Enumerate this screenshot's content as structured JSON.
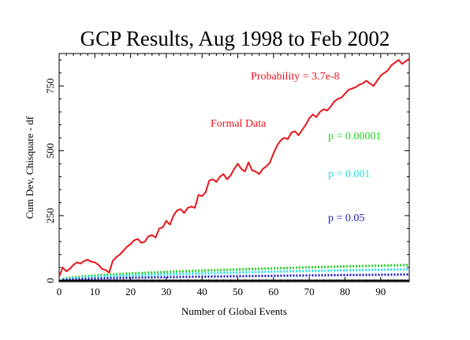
{
  "chart_data": {
    "type": "line",
    "title": "GCP Results, Aug 1998 to Feb 2002",
    "xlabel": "Number of Global Events",
    "ylabel": "Cum Dev, Chisquare - df",
    "xlim": [
      0,
      98
    ],
    "ylim": [
      -5,
      875
    ],
    "x_ticks": [
      0,
      10,
      20,
      30,
      40,
      50,
      60,
      70,
      80,
      90
    ],
    "y_ticks": [
      0,
      250,
      500,
      750
    ],
    "grid": false,
    "frame_color": "#000000",
    "series": [
      {
        "name": "Formal Data",
        "style": "solid",
        "color": "#e8141b",
        "x": [
          0,
          1,
          2,
          3,
          4,
          5,
          6,
          7,
          8,
          9,
          10,
          11,
          12,
          13,
          14,
          15,
          16,
          17,
          18,
          19,
          20,
          21,
          22,
          23,
          24,
          25,
          26,
          27,
          28,
          29,
          30,
          31,
          32,
          33,
          34,
          35,
          36,
          37,
          38,
          39,
          40,
          41,
          42,
          43,
          44,
          45,
          46,
          47,
          48,
          49,
          50,
          51,
          52,
          53,
          54,
          55,
          56,
          57,
          58,
          59,
          60,
          61,
          62,
          63,
          64,
          65,
          66,
          67,
          68,
          69,
          70,
          71,
          72,
          73,
          74,
          75,
          76,
          77,
          78,
          79,
          80,
          81,
          82,
          83,
          84,
          85,
          86,
          87,
          88,
          89,
          90,
          91,
          92,
          93,
          94,
          95,
          96,
          97,
          98
        ],
        "y": [
          15,
          50,
          35,
          45,
          60,
          70,
          65,
          75,
          80,
          72,
          70,
          60,
          45,
          40,
          30,
          75,
          90,
          100,
          115,
          130,
          140,
          155,
          160,
          145,
          150,
          170,
          175,
          165,
          200,
          205,
          230,
          215,
          250,
          270,
          275,
          260,
          280,
          285,
          280,
          330,
          325,
          340,
          385,
          390,
          380,
          400,
          410,
          390,
          405,
          430,
          450,
          430,
          420,
          455,
          425,
          420,
          410,
          430,
          440,
          455,
          490,
          520,
          540,
          550,
          545,
          570,
          575,
          560,
          580,
          600,
          625,
          640,
          630,
          650,
          660,
          655,
          670,
          690,
          700,
          705,
          720,
          735,
          740,
          745,
          755,
          760,
          770,
          760,
          750,
          770,
          790,
          800,
          810,
          830,
          840,
          850,
          835,
          845,
          855
        ]
      },
      {
        "name": "p = 0.00001",
        "style": "dotted",
        "color": "#22d422",
        "curve": {
          "p": 1e-05,
          "z": 4.265
        }
      },
      {
        "name": "p = 0.001",
        "style": "dotted",
        "color": "#1fe0e8",
        "curve": {
          "p": 0.001,
          "z": 3.09
        }
      },
      {
        "name": "p = 0.05",
        "style": "dotted",
        "color": "#1a1ed0",
        "curve": {
          "p": 0.05,
          "z": 1.645
        }
      },
      {
        "name": "zero",
        "style": "solid",
        "color": "#000000",
        "curve": {
          "z": 0
        }
      }
    ],
    "annotations": {
      "probability": "Probability = 3.7e-8",
      "formal_data": "Formal Data",
      "p1": "p = 0.00001",
      "p2": "p = 0.001",
      "p3": "p = 0.05"
    },
    "annotation_colors": {
      "probability": "#e8141b",
      "formal_data": "#e8141b",
      "p1": "#22d422",
      "p2": "#1fe0e8",
      "p3": "#1a1ed0"
    }
  }
}
